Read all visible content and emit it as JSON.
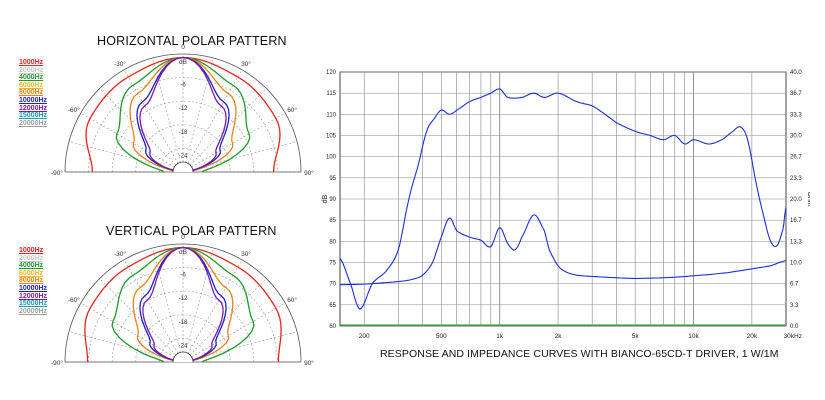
{
  "polar_charts": [
    {
      "title": "HORIZONTAL POLAR PATTERN",
      "unit": "dB",
      "angle_labels": [
        "-90°",
        "-60°",
        "-30°",
        "0",
        "30°",
        "60°",
        "90°"
      ],
      "ring_labels": [
        "-6",
        "-12",
        "-18",
        "-24"
      ],
      "legend": [
        "1000Hz",
        "2000Hz",
        "4000Hz",
        "6000Hz",
        "8000Hz",
        "10000Hz",
        "12000Hz",
        "15000Hz",
        "20000Hz"
      ]
    },
    {
      "title": "VERTICAL POLAR PATTERN",
      "unit": "dB",
      "angle_labels": [
        "-90°",
        "-60°",
        "-30°",
        "0",
        "30°",
        "60°",
        "90°"
      ],
      "ring_labels": [
        "-6",
        "-12",
        "-18",
        "-24"
      ],
      "legend": [
        "1000Hz",
        "2000Hz",
        "4000Hz",
        "6000Hz",
        "8000Hz",
        "10000Hz",
        "12000Hz",
        "15000Hz",
        "20000Hz"
      ]
    }
  ],
  "legend_colors": [
    "#e8231f",
    "#c8c8c8",
    "#1f9a2c",
    "#f2b61c",
    "#e8821a",
    "#1a22c8",
    "#7a1aa8",
    "#1a9ab8",
    "#a0a0a0"
  ],
  "chart_data": [
    {
      "type": "polar",
      "title": "HORIZONTAL POLAR PATTERN",
      "angle_range_deg": [
        -90,
        90
      ],
      "db_range": [
        -24,
        0
      ],
      "series": [
        {
          "name": "1000Hz",
          "angles": [
            -90,
            -60,
            -30,
            0,
            30,
            60,
            90
          ],
          "values": [
            -5,
            -1.5,
            -1,
            0,
            -1,
            -1.5,
            -5
          ]
        },
        {
          "name": "4000Hz",
          "angles": [
            -90,
            -60,
            -30,
            0,
            30,
            60,
            90
          ],
          "values": [
            -20,
            -8,
            -3,
            0,
            -3,
            -8,
            -20
          ]
        },
        {
          "name": "8000Hz",
          "angles": [
            -90,
            -60,
            -30,
            0,
            30,
            60,
            90
          ],
          "values": [
            -24,
            -12,
            -5,
            0,
            -5,
            -12,
            -24
          ]
        },
        {
          "name": "10000Hz",
          "angles": [
            -90,
            -60,
            -30,
            0,
            30,
            60,
            90
          ],
          "values": [
            -24,
            -15,
            -7,
            0,
            -7,
            -15,
            -24
          ]
        },
        {
          "name": "12000Hz",
          "angles": [
            -90,
            -60,
            -30,
            0,
            30,
            60,
            90
          ],
          "values": [
            -24,
            -16,
            -8,
            0,
            -8,
            -16,
            -24
          ]
        }
      ]
    },
    {
      "type": "polar",
      "title": "VERTICAL POLAR PATTERN",
      "angle_range_deg": [
        -90,
        90
      ],
      "db_range": [
        -24,
        0
      ],
      "series": [
        {
          "name": "1000Hz",
          "angles": [
            -90,
            -60,
            -30,
            0,
            30,
            60,
            90
          ],
          "values": [
            -4,
            -1.5,
            -1,
            0,
            -1,
            -1.5,
            -4
          ]
        },
        {
          "name": "4000Hz",
          "angles": [
            -90,
            -60,
            -30,
            0,
            30,
            60,
            90
          ],
          "values": [
            -20,
            -7,
            -3,
            0,
            -3,
            -7,
            -20
          ]
        },
        {
          "name": "8000Hz",
          "angles": [
            -90,
            -60,
            -30,
            0,
            30,
            60,
            90
          ],
          "values": [
            -24,
            -13,
            -6,
            0,
            -6,
            -13,
            -24
          ]
        },
        {
          "name": "10000Hz",
          "angles": [
            -90,
            -60,
            -30,
            0,
            30,
            60,
            90
          ],
          "values": [
            -24,
            -16,
            -8,
            0,
            -8,
            -16,
            -24
          ]
        },
        {
          "name": "12000Hz",
          "angles": [
            -90,
            -60,
            -30,
            0,
            30,
            60,
            90
          ],
          "values": [
            -24,
            -17,
            -9,
            0,
            -9,
            -17,
            -24
          ]
        }
      ]
    },
    {
      "type": "line",
      "title": "RESPONSE AND IMPEDANCE CURVES WITH BIANCO-65CD-T DRIVER, 1 W/1M",
      "xlabel": "",
      "ylabel": "dB",
      "y2label": "Ohm",
      "x_scale": "log",
      "xlim": [
        150,
        30000
      ],
      "ylim": [
        60,
        120
      ],
      "y2lim": [
        0,
        40
      ],
      "x_ticks": [
        "200",
        "500",
        "1k",
        "2k",
        "5k",
        "10k",
        "20k",
        "30kHz"
      ],
      "x_tick_values": [
        200,
        500,
        1000,
        2000,
        5000,
        10000,
        20000,
        30000
      ],
      "y_ticks": [
        60,
        65,
        70,
        75,
        80,
        85,
        90,
        95,
        100,
        105,
        110,
        115,
        120
      ],
      "y2_ticks": [
        "0.0",
        "3.3",
        "6.7",
        "10.0",
        "13.3",
        "16.7",
        "20.0",
        "23.3",
        "26.7",
        "30.0",
        "33.3",
        "36.7",
        "40.0"
      ],
      "series": [
        {
          "name": "",
          "axis": "left",
          "x": [
            150,
            170,
            190,
            220,
            260,
            300,
            340,
            380,
            420,
            460,
            500,
            550,
            600,
            700,
            800,
            900,
            1000,
            1100,
            1300,
            1500,
            1700,
            2000,
            2500,
            3000,
            3500,
            4000,
            5000,
            6000,
            7000,
            8000,
            9000,
            10000,
            12000,
            14000,
            16000,
            17500,
            19000,
            21000,
            23000,
            25000,
            27000,
            29000,
            30000
          ],
          "values": [
            76,
            70,
            64,
            70,
            73,
            78,
            90,
            98,
            106,
            109,
            111,
            110,
            111,
            113,
            114,
            115,
            116,
            114,
            114,
            115,
            114,
            115,
            113,
            112,
            110,
            108,
            106,
            105,
            104,
            105,
            103,
            104,
            103,
            104,
            106,
            107,
            104,
            94,
            86,
            80,
            79,
            83,
            88
          ]
        },
        {
          "name": "",
          "axis": "right",
          "x": [
            150,
            200,
            250,
            300,
            350,
            400,
            450,
            500,
            550,
            600,
            700,
            800,
            900,
            1000,
            1100,
            1200,
            1300,
            1500,
            1700,
            1800,
            2000,
            2200,
            2500,
            3000,
            4000,
            5000,
            7000,
            10000,
            15000,
            20000,
            25000,
            30000
          ],
          "values": [
            6.5,
            6.6,
            6.8,
            7.0,
            7.3,
            8.0,
            10.0,
            14.0,
            17.0,
            15.0,
            14.0,
            13.5,
            12.5,
            15.5,
            13.0,
            12.0,
            14.0,
            17.5,
            15.0,
            12.0,
            9.5,
            8.5,
            8.0,
            7.8,
            7.6,
            7.5,
            7.6,
            7.9,
            8.4,
            9.0,
            9.5,
            10.3
          ]
        }
      ]
    }
  ]
}
